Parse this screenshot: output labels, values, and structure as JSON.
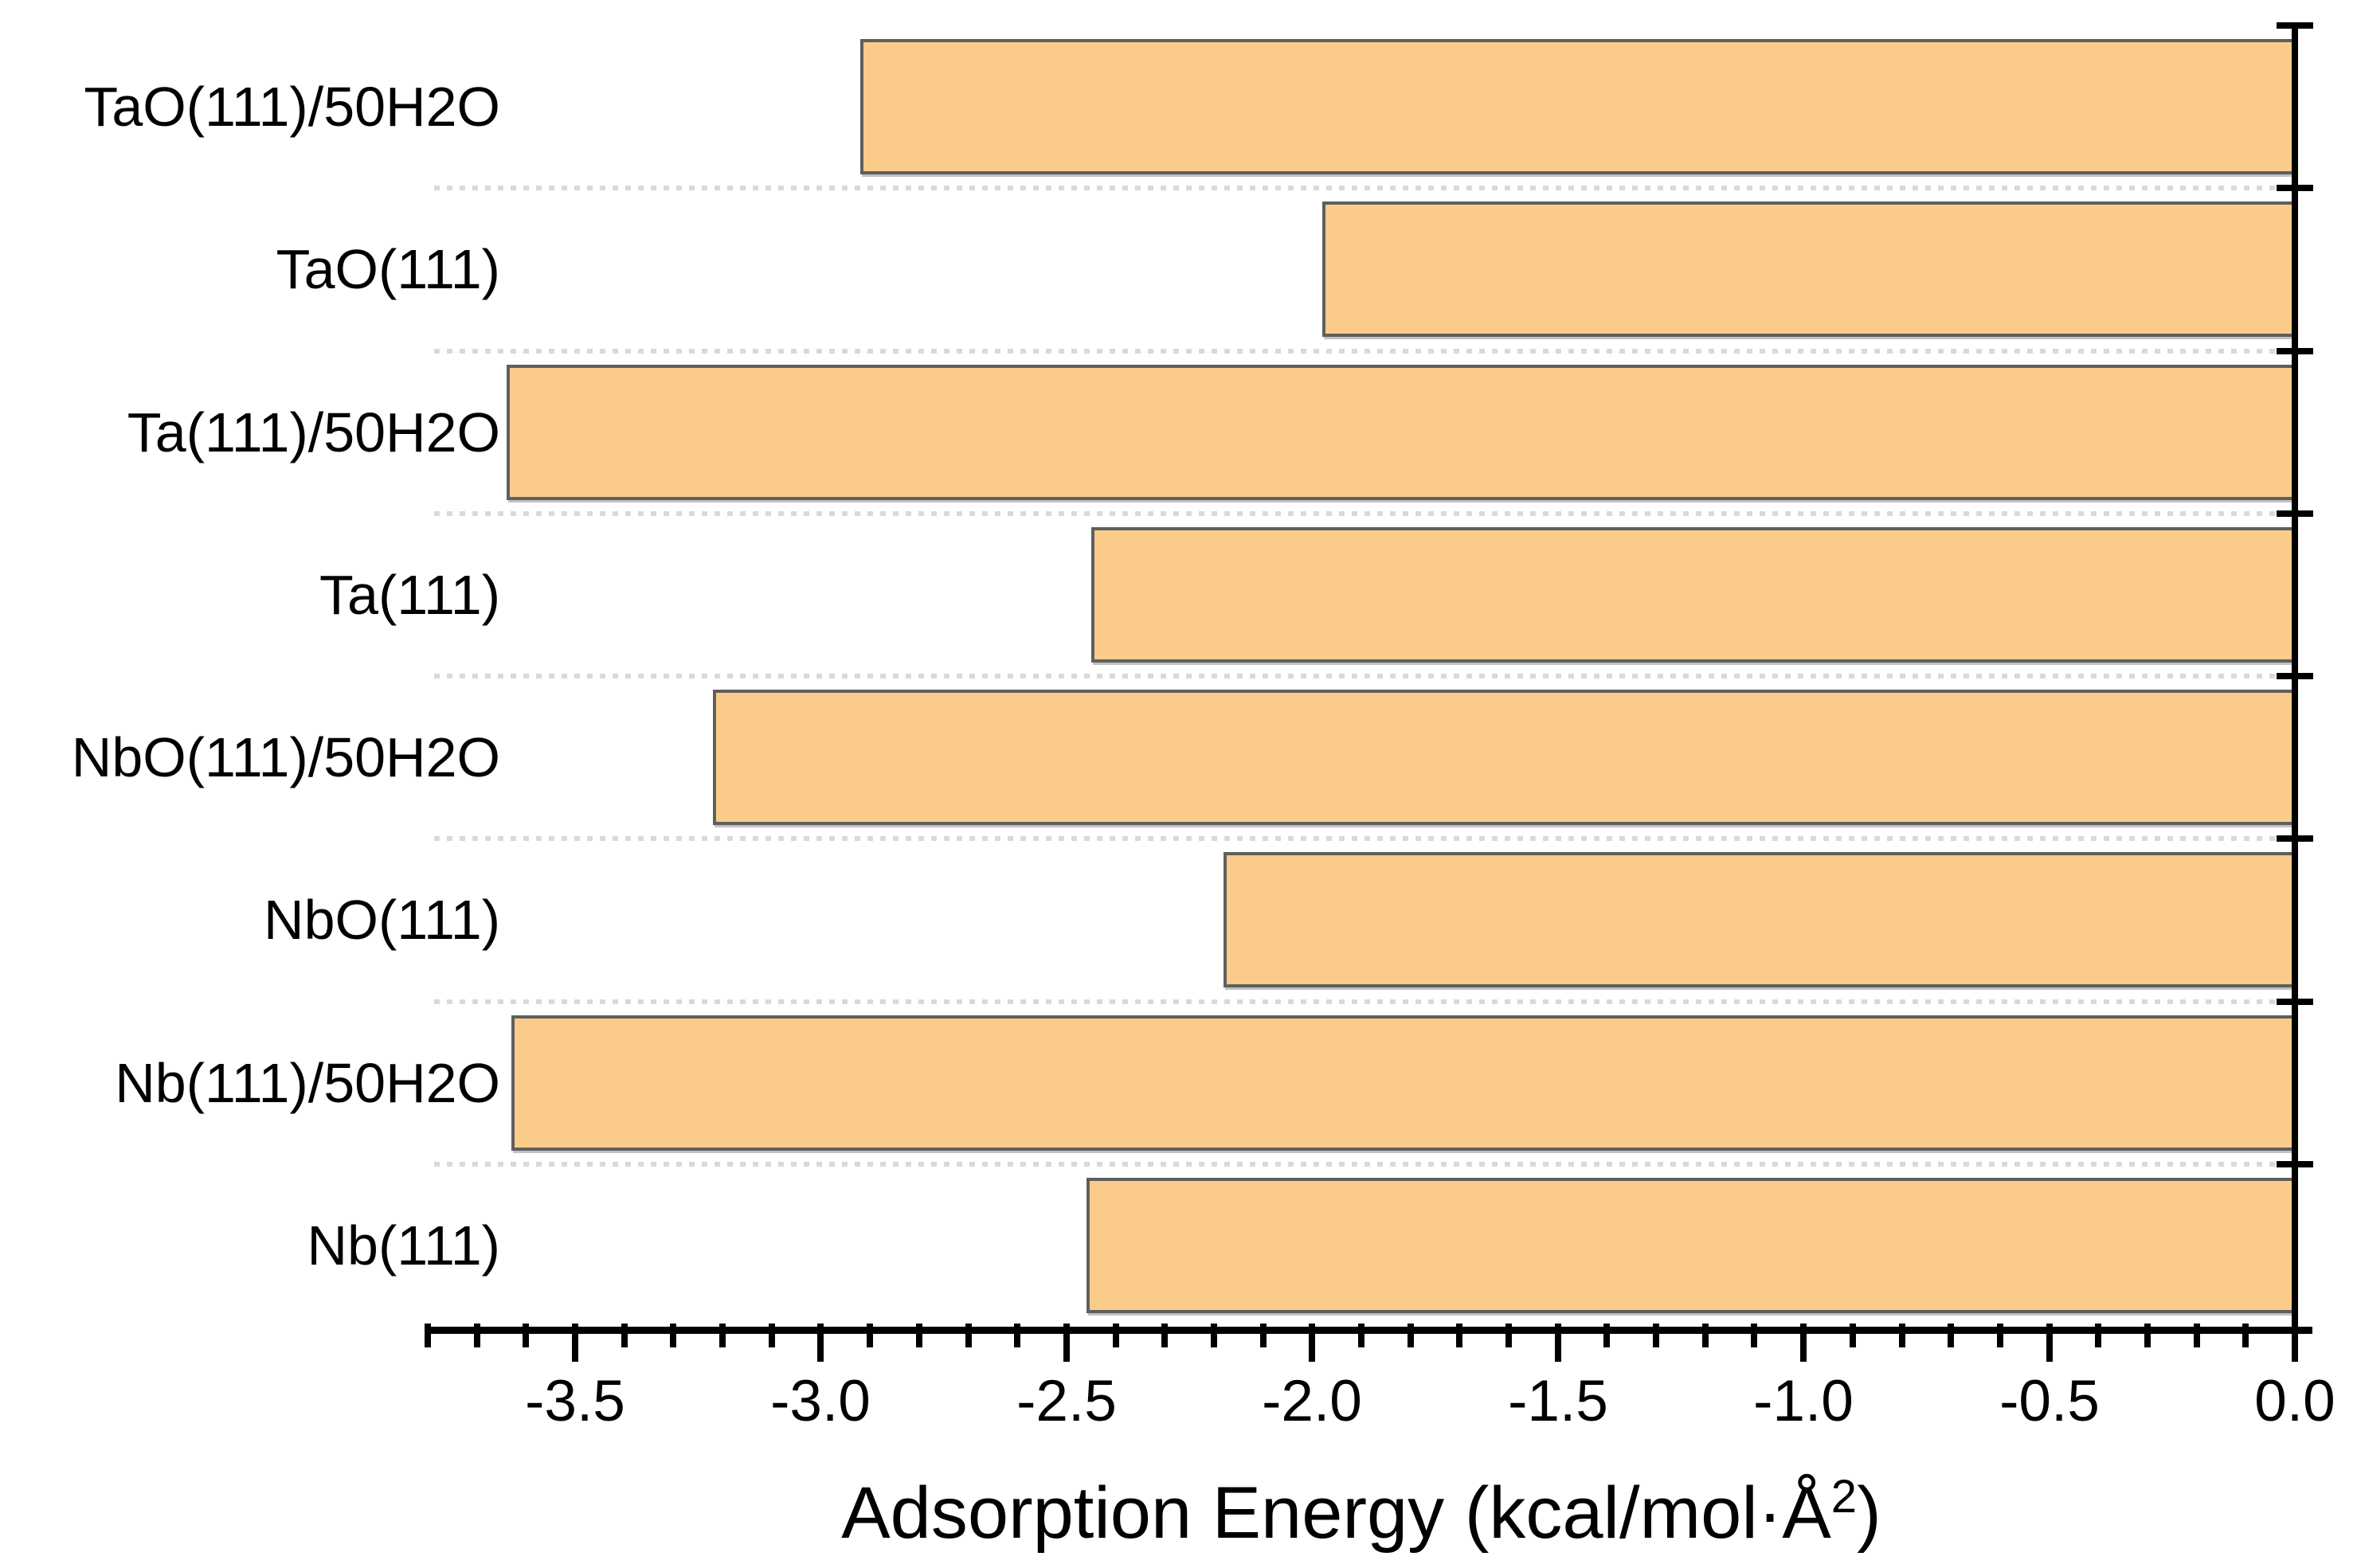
{
  "chart_data": {
    "type": "bar",
    "orientation": "horizontal",
    "title": "",
    "categories": [
      "TaO(111)/50H2O",
      "TaO(111)",
      "Ta(111)/50H2O",
      "Ta(111)",
      "NbO(111)/50H2O",
      "NbO(111)",
      "Nb(111)/50H2O",
      "Nb(111)"
    ],
    "values": [
      -2.92,
      -1.98,
      -3.64,
      -2.45,
      -3.22,
      -2.18,
      -3.63,
      -2.46
    ],
    "xlabel_prefix": "Adsorption Energy (kcal/mol·Å",
    "xlabel_sup": "2",
    "xlabel_suffix": ")",
    "xlim": [
      -3.8,
      0.0
    ],
    "x_major_ticks": [
      -3.5,
      -3.0,
      -2.5,
      -2.0,
      -1.5,
      -1.0,
      -0.5,
      0.0
    ],
    "x_tick_labels": [
      "-3.5",
      "-3.0",
      "-2.5",
      "-2.0",
      "-1.5",
      "-1.0",
      "-0.5",
      "0.0"
    ],
    "x_minor_step": 0.1,
    "ylabel": "",
    "legend": "none",
    "grid": "dotted horizontal separators between categories",
    "colors": {
      "bar_fill": "#FBCC89",
      "bar_border": "#5F5F5F",
      "axis": "#000000",
      "grid_dots": "#D9D9D9",
      "text": "#000000",
      "background": "#FFFFFF"
    }
  }
}
